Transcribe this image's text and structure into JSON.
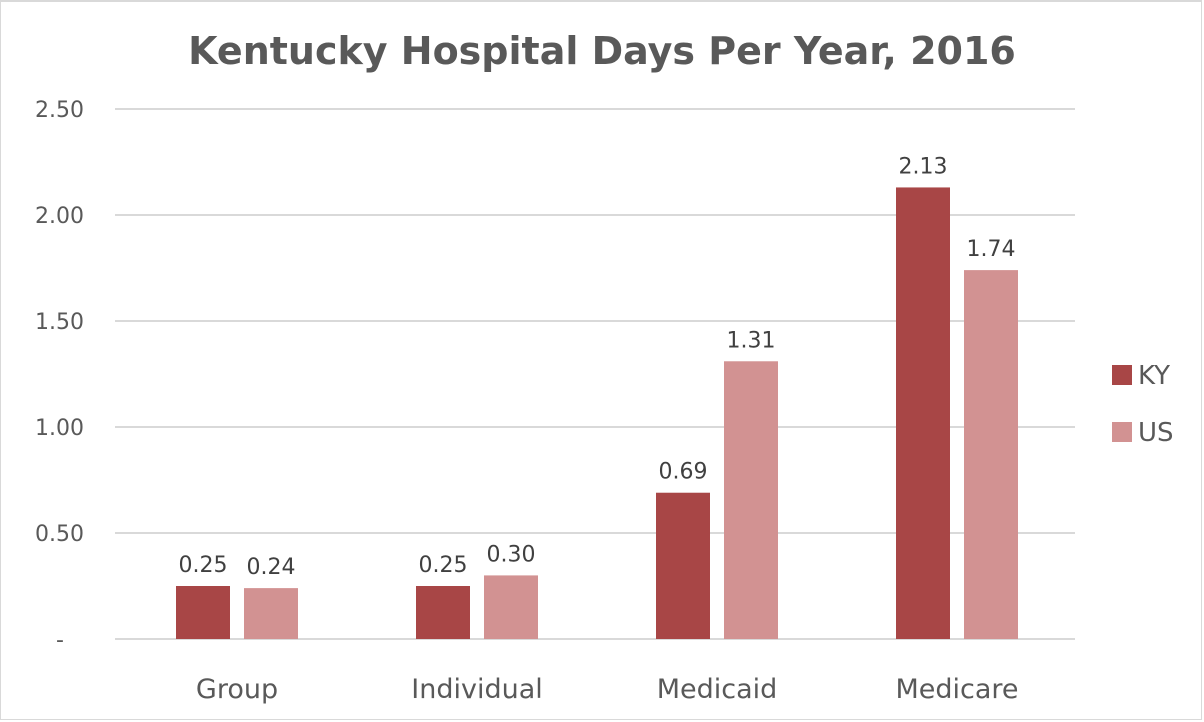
{
  "chart_data": {
    "type": "bar",
    "title": "Kentucky Hospital Days Per Year, 2016",
    "xlabel": "",
    "ylabel": "",
    "categories": [
      "Group",
      "Individual",
      "Medicaid",
      "Medicare"
    ],
    "series": [
      {
        "name": "KY",
        "color": "#a84646",
        "values": [
          0.25,
          0.25,
          0.69,
          2.13
        ],
        "labels": [
          "0.25",
          "0.25",
          "0.69",
          "2.13"
        ]
      },
      {
        "name": "US",
        "color": "#d29292",
        "values": [
          0.24,
          0.3,
          1.31,
          1.74
        ],
        "labels": [
          "0.24",
          "0.30",
          "1.31",
          "1.74"
        ]
      }
    ],
    "ylim": [
      0,
      2.5
    ],
    "yticks": [
      0,
      0.5,
      1.0,
      1.5,
      2.0,
      2.5
    ],
    "ytick_labels": [
      "-",
      "0.50",
      "1.00",
      "1.50",
      "2.00",
      "2.50"
    ],
    "grid": true,
    "legend_position": "right"
  }
}
